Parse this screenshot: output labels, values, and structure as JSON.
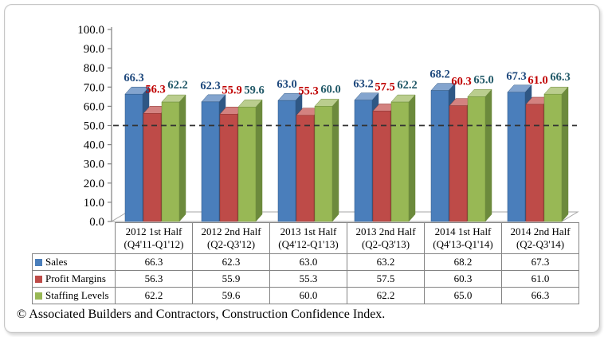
{
  "footer": {
    "text": "© Associated Builders and Contractors, Construction Confidence Index."
  },
  "chart_data": {
    "type": "bar",
    "style": "3d-clustered-column",
    "title": "",
    "xlabel": "",
    "ylabel": "",
    "categories": [
      {
        "label": "2012 1st Half",
        "sublabel": "(Q4'11-Q1'12)"
      },
      {
        "label": "2012 2nd Half",
        "sublabel": "(Q2-Q3'12)"
      },
      {
        "label": "2013 1st Half",
        "sublabel": "(Q4'12-Q1'13)"
      },
      {
        "label": "2013 2nd Half",
        "sublabel": "(Q2-Q3'13)"
      },
      {
        "label": "2014 1st Half",
        "sublabel": "(Q4'13-Q1'14)"
      },
      {
        "label": "2014 2nd Half",
        "sublabel": "(Q2-Q3'14)"
      }
    ],
    "series": [
      {
        "name": "Sales",
        "values": [
          66.3,
          62.3,
          63.0,
          63.2,
          68.2,
          67.3
        ],
        "color": "#4A7EBB",
        "top_color": "#83A4CE",
        "side_color": "#2F5784",
        "label_color": "#1F497D"
      },
      {
        "name": "Profit Margins",
        "values": [
          56.3,
          55.9,
          55.3,
          57.5,
          60.3,
          61.0
        ],
        "color": "#BE4B48",
        "top_color": "#D38280",
        "side_color": "#8B3431",
        "label_color": "#C00000"
      },
      {
        "name": "Staffing Levels",
        "values": [
          62.2,
          59.6,
          60.0,
          62.2,
          65.0,
          66.3
        ],
        "color": "#98B855",
        "top_color": "#BACD8E",
        "side_color": "#6C8A3C",
        "label_color": "#215968"
      }
    ],
    "ylim": [
      0,
      100
    ],
    "ytick_step": 10,
    "ytick_labels": [
      "0.0",
      "10.0",
      "20.0",
      "30.0",
      "40.0",
      "50.0",
      "60.0",
      "70.0",
      "80.0",
      "90.0",
      "100.0"
    ],
    "reference_line": 50,
    "grid": "off",
    "legend_position": "data-table-left",
    "axis_color": "#7F7F7F",
    "floor_color": "#A6A6A6",
    "reference_line_color": "#333333",
    "table_border_color": "#848484"
  }
}
